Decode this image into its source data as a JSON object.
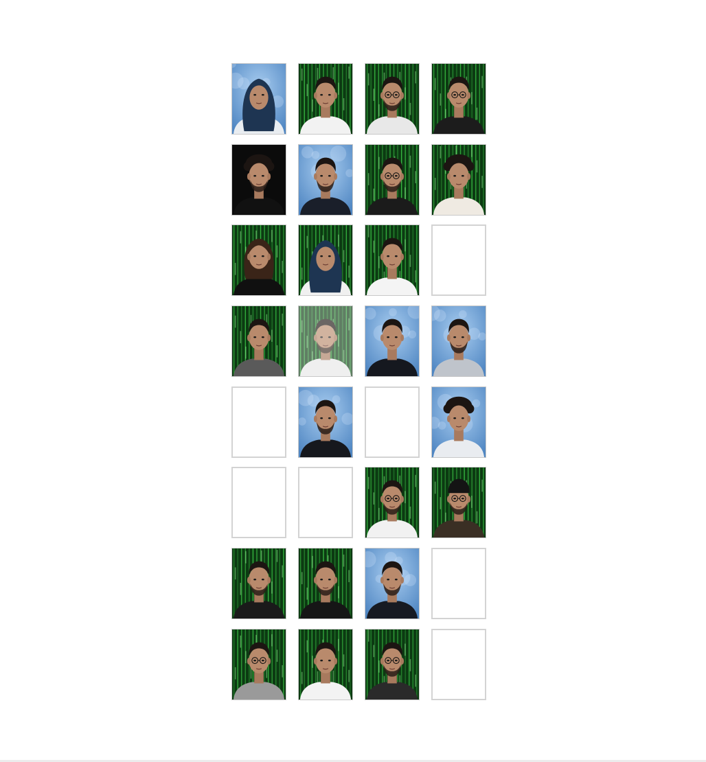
{
  "colors": {
    "page_background": "#ffffff",
    "tile_border": "#d3d3d3",
    "bg_matrix_green": "#0c3a12",
    "bg_blue_bokeh": "#4f86c2",
    "bg_black": "#0b0b0b"
  },
  "grid": {
    "columns": 4,
    "tiles": [
      {
        "state": "photo",
        "bg": "blue",
        "hair": "hijab",
        "shirt": "#e9edf1",
        "glasses": false,
        "beard": false
      },
      {
        "state": "photo",
        "bg": "green",
        "hair": "short",
        "shirt": "#f2f2f2",
        "glasses": false,
        "beard": false
      },
      {
        "state": "photo",
        "bg": "green",
        "hair": "short",
        "shirt": "#e8e8e8",
        "glasses": true,
        "beard": true
      },
      {
        "state": "photo",
        "bg": "green",
        "hair": "short",
        "shirt": "#1c1c1c",
        "glasses": true,
        "beard": false
      },
      {
        "state": "photo",
        "bg": "black",
        "hair": "curly",
        "shirt": "#111111",
        "glasses": false,
        "beard": true
      },
      {
        "state": "photo",
        "bg": "blue",
        "hair": "short",
        "shirt": "#1a1f2a",
        "glasses": false,
        "beard": true
      },
      {
        "state": "photo",
        "bg": "green",
        "hair": "short",
        "shirt": "#1b1b1b",
        "glasses": true,
        "beard": true
      },
      {
        "state": "photo",
        "bg": "green",
        "hair": "curly",
        "shirt": "#efeae2",
        "glasses": false,
        "beard": false
      },
      {
        "state": "photo",
        "bg": "green",
        "hair": "long",
        "shirt": "#101010",
        "glasses": false,
        "beard": false
      },
      {
        "state": "photo",
        "bg": "green",
        "hair": "hijab",
        "shirt": "#f0f0f0",
        "glasses": false,
        "beard": false
      },
      {
        "state": "photo",
        "bg": "green",
        "hair": "short",
        "shirt": "#f4f4f4",
        "glasses": false,
        "beard": false
      },
      {
        "state": "empty"
      },
      {
        "state": "photo",
        "bg": "green",
        "hair": "short",
        "shirt": "#5a5a5a",
        "glasses": false,
        "beard": false
      },
      {
        "state": "photo",
        "bg": "green",
        "hair": "short",
        "shirt": "#e7e7e7",
        "glasses": false,
        "beard": true,
        "faded": true
      },
      {
        "state": "photo",
        "bg": "blue",
        "hair": "short",
        "shirt": "#15181f",
        "glasses": false,
        "beard": false
      },
      {
        "state": "photo",
        "bg": "blue",
        "hair": "short",
        "shirt": "#bfc4cb",
        "glasses": false,
        "beard": true
      },
      {
        "state": "empty"
      },
      {
        "state": "photo",
        "bg": "blue",
        "hair": "short",
        "shirt": "#16181d",
        "glasses": false,
        "beard": true
      },
      {
        "state": "empty"
      },
      {
        "state": "photo",
        "bg": "blue",
        "hair": "curly",
        "shirt": "#e9ecf0",
        "glasses": false,
        "beard": false
      },
      {
        "state": "empty"
      },
      {
        "state": "empty"
      },
      {
        "state": "photo",
        "bg": "green",
        "hair": "short",
        "shirt": "#f1f1f1",
        "glasses": true,
        "beard": true
      },
      {
        "state": "photo",
        "bg": "green",
        "hair": "cap",
        "shirt": "#3a2f24",
        "glasses": true,
        "beard": true
      },
      {
        "state": "photo",
        "bg": "green",
        "hair": "short",
        "shirt": "#1a1a1a",
        "glasses": false,
        "beard": true
      },
      {
        "state": "photo",
        "bg": "green",
        "hair": "short",
        "shirt": "#161616",
        "glasses": false,
        "beard": true
      },
      {
        "state": "photo",
        "bg": "blue",
        "hair": "short",
        "shirt": "#171a22",
        "glasses": false,
        "beard": true
      },
      {
        "state": "empty"
      },
      {
        "state": "photo",
        "bg": "green",
        "hair": "short",
        "shirt": "#9a9a9a",
        "glasses": true,
        "beard": false
      },
      {
        "state": "photo",
        "bg": "green",
        "hair": "short",
        "shirt": "#f3f3f3",
        "glasses": false,
        "beard": false
      },
      {
        "state": "photo",
        "bg": "green",
        "hair": "short",
        "shirt": "#2a2a2a",
        "glasses": true,
        "beard": true
      },
      {
        "state": "empty"
      }
    ]
  }
}
